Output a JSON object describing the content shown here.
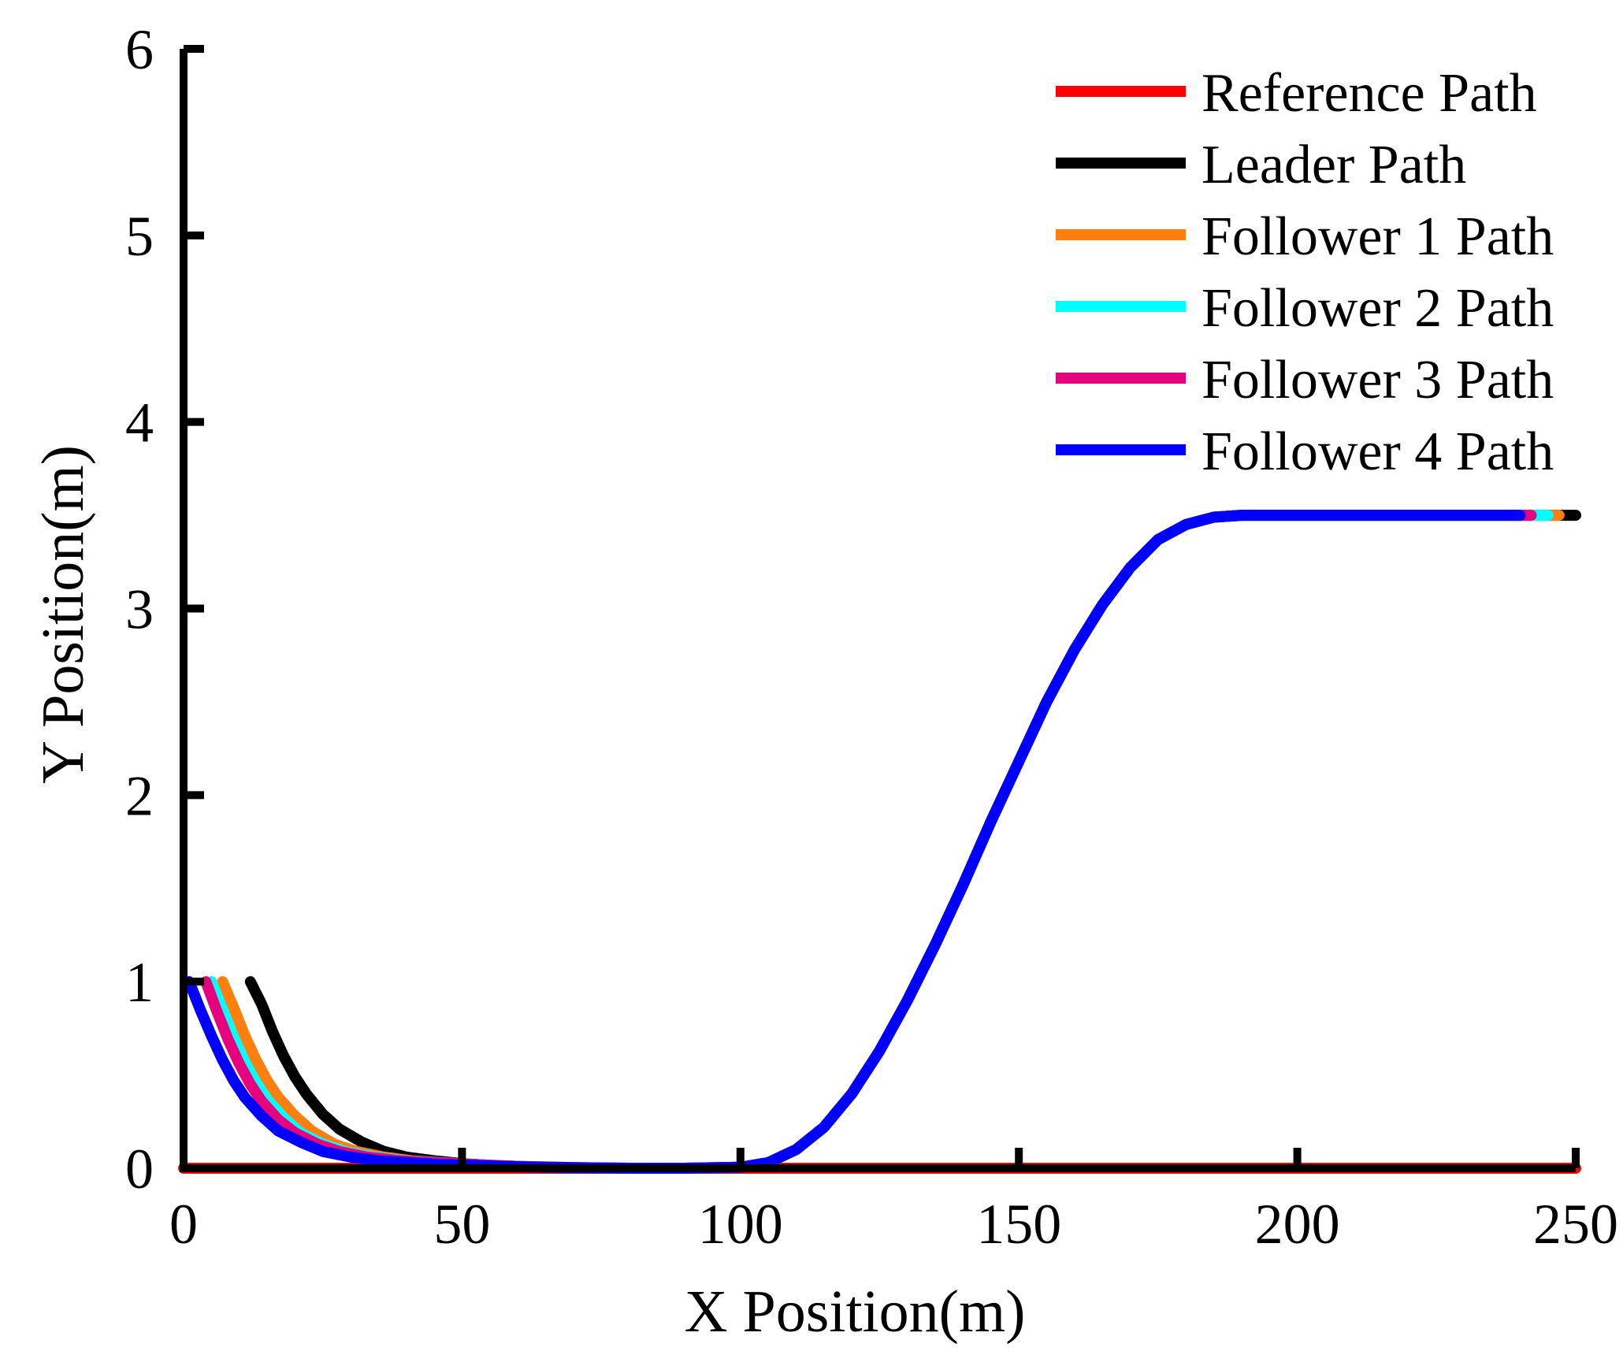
{
  "chart_data": {
    "type": "line",
    "title": "",
    "xlabel": "X Position(m)",
    "ylabel": "Y Position(m)",
    "xlim": [
      0,
      250
    ],
    "ylim": [
      0,
      6
    ],
    "xticks": [
      0,
      50,
      100,
      150,
      200,
      250
    ],
    "yticks": [
      0,
      1,
      2,
      3,
      4,
      5,
      6
    ],
    "grid": false,
    "legend_position": "top-right",
    "series": [
      {
        "name": "Reference Path",
        "color": "#FF0000",
        "x": [
          0,
          50,
          100,
          150,
          200,
          250
        ],
        "y": [
          0,
          0,
          0,
          0,
          0,
          0
        ]
      },
      {
        "name": "Leader Path",
        "color": "#000000",
        "x": [
          12,
          14,
          16,
          18,
          20,
          22,
          25,
          28,
          32,
          36,
          40,
          45,
          50,
          55,
          60,
          65,
          70,
          80,
          90,
          100,
          105,
          110,
          115,
          120,
          125,
          130,
          135,
          140,
          145,
          150,
          155,
          160,
          165,
          170,
          175,
          180,
          185,
          190,
          195,
          200,
          210,
          220,
          230,
          240,
          245,
          250
        ],
        "y": [
          1.0,
          0.88,
          0.73,
          0.6,
          0.49,
          0.4,
          0.29,
          0.21,
          0.14,
          0.09,
          0.06,
          0.04,
          0.025,
          0.015,
          0.01,
          0.005,
          0.002,
          0,
          0,
          0.005,
          0.03,
          0.1,
          0.22,
          0.4,
          0.63,
          0.9,
          1.2,
          1.52,
          1.86,
          2.18,
          2.5,
          2.78,
          3.02,
          3.22,
          3.37,
          3.45,
          3.49,
          3.5,
          3.5,
          3.5,
          3.5,
          3.5,
          3.5,
          3.5,
          3.5,
          3.5
        ]
      },
      {
        "name": "Follower 1 Path",
        "color": "#FF7F0E",
        "x": [
          7,
          9,
          11,
          13,
          15,
          17,
          20,
          23,
          27,
          31,
          36,
          41,
          46,
          52,
          60,
          70,
          80,
          90,
          100,
          105,
          110,
          115,
          120,
          125,
          130,
          135,
          140,
          145,
          150,
          155,
          160,
          165,
          170,
          175,
          180,
          185,
          190,
          195,
          200,
          210,
          220,
          230,
          240,
          247
        ],
        "y": [
          1.0,
          0.86,
          0.71,
          0.58,
          0.47,
          0.38,
          0.28,
          0.2,
          0.13,
          0.09,
          0.06,
          0.04,
          0.03,
          0.02,
          0.01,
          0.003,
          0,
          0,
          0.005,
          0.03,
          0.1,
          0.22,
          0.4,
          0.63,
          0.9,
          1.2,
          1.52,
          1.86,
          2.18,
          2.5,
          2.78,
          3.02,
          3.22,
          3.37,
          3.45,
          3.49,
          3.5,
          3.5,
          3.5,
          3.5,
          3.5,
          3.5,
          3.5,
          3.5
        ]
      },
      {
        "name": "Follower 2 Path",
        "color": "#00FFFF",
        "x": [
          5,
          7,
          9,
          11,
          13,
          15,
          18,
          21,
          25,
          29,
          34,
          40,
          46,
          52,
          60,
          70,
          80,
          90,
          100,
          105,
          110,
          115,
          120,
          125,
          130,
          135,
          140,
          145,
          150,
          155,
          160,
          165,
          170,
          175,
          180,
          185,
          190,
          195,
          200,
          210,
          220,
          230,
          240,
          245
        ],
        "y": [
          1.0,
          0.85,
          0.7,
          0.57,
          0.46,
          0.37,
          0.27,
          0.19,
          0.13,
          0.09,
          0.06,
          0.04,
          0.03,
          0.02,
          0.01,
          0.003,
          0,
          0,
          0.005,
          0.03,
          0.1,
          0.22,
          0.4,
          0.63,
          0.9,
          1.2,
          1.52,
          1.86,
          2.18,
          2.5,
          2.78,
          3.02,
          3.22,
          3.37,
          3.45,
          3.49,
          3.5,
          3.5,
          3.5,
          3.5,
          3.5,
          3.5,
          3.5,
          3.5
        ]
      },
      {
        "name": "Follower 3 Path",
        "color": "#E6007E",
        "x": [
          4,
          6,
          8,
          10,
          12,
          14,
          17,
          20,
          24,
          28,
          33,
          39,
          45,
          52,
          60,
          70,
          80,
          90,
          100,
          105,
          110,
          115,
          120,
          125,
          130,
          135,
          140,
          145,
          150,
          155,
          160,
          165,
          170,
          175,
          180,
          185,
          190,
          195,
          200,
          210,
          220,
          230,
          240,
          242
        ],
        "y": [
          1.0,
          0.84,
          0.69,
          0.56,
          0.45,
          0.36,
          0.26,
          0.19,
          0.13,
          0.09,
          0.06,
          0.04,
          0.03,
          0.02,
          0.01,
          0.003,
          0,
          0,
          0.005,
          0.03,
          0.1,
          0.22,
          0.4,
          0.63,
          0.9,
          1.2,
          1.52,
          1.86,
          2.18,
          2.5,
          2.78,
          3.02,
          3.22,
          3.37,
          3.45,
          3.49,
          3.5,
          3.5,
          3.5,
          3.5,
          3.5,
          3.5,
          3.5,
          3.5
        ]
      },
      {
        "name": "Follower 4 Path",
        "color": "#0000FF",
        "x": [
          1,
          3,
          5,
          7,
          9,
          11,
          14,
          17,
          21,
          25,
          30,
          35,
          40,
          46,
          52,
          60,
          70,
          80,
          90,
          100,
          105,
          110,
          115,
          120,
          125,
          130,
          135,
          140,
          145,
          150,
          155,
          160,
          165,
          170,
          175,
          180,
          185,
          190,
          195,
          200,
          210,
          220,
          230,
          240
        ],
        "y": [
          1.0,
          0.85,
          0.71,
          0.58,
          0.47,
          0.38,
          0.28,
          0.2,
          0.14,
          0.09,
          0.06,
          0.04,
          0.03,
          0.02,
          0.015,
          0.008,
          0.003,
          0,
          0,
          0.005,
          0.03,
          0.1,
          0.22,
          0.4,
          0.63,
          0.9,
          1.2,
          1.52,
          1.86,
          2.18,
          2.5,
          2.78,
          3.02,
          3.22,
          3.37,
          3.45,
          3.49,
          3.5,
          3.5,
          3.5,
          3.5,
          3.5,
          3.5,
          3.5
        ]
      }
    ]
  }
}
